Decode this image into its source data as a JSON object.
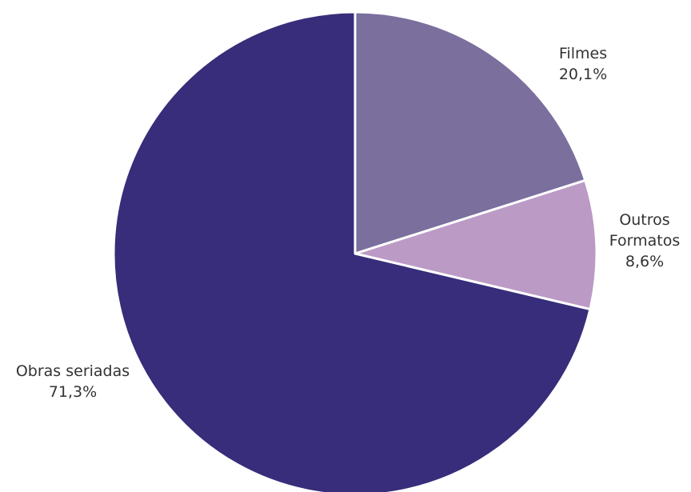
{
  "chart_data": {
    "type": "pie",
    "categories": [
      "Filmes",
      "Outros Formatos",
      "Obras seriadas"
    ],
    "values": [
      20.1,
      8.6,
      71.3
    ],
    "labels": [
      {
        "lines": [
          "Filmes"
        ],
        "value": "20,1%"
      },
      {
        "lines": [
          "Outros",
          "Formatos"
        ],
        "value": "8,6%"
      },
      {
        "lines": [
          "Obras seriadas"
        ],
        "value": "71,3%"
      }
    ],
    "colors": [
      "#7b6f9e",
      "#bb9ac6",
      "#372d7a"
    ],
    "start_angle": "12 o'clock",
    "direction": "clockwise",
    "legend": "none"
  }
}
